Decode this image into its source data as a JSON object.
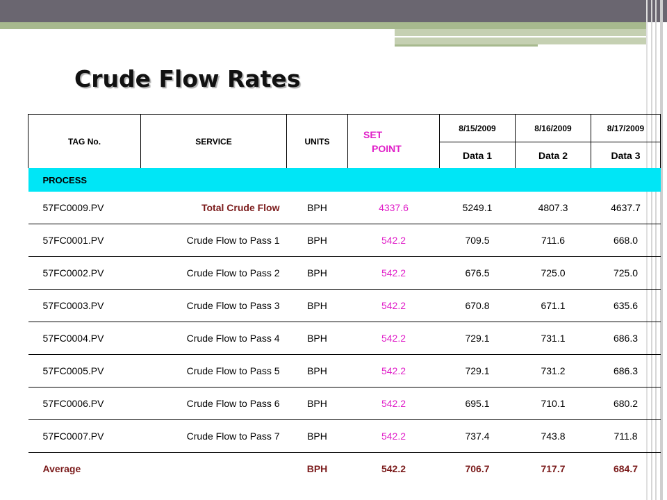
{
  "slide": {
    "title": "Crude Flow Rates"
  },
  "table": {
    "headers": {
      "tag": "TAG No.",
      "service": "SERVICE",
      "units": "UNITS",
      "set_point_line1": "SET",
      "set_point_line2": "POINT",
      "dates": [
        "8/15/2009",
        "8/16/2009",
        "8/17/2009"
      ],
      "data_labels": [
        "Data 1",
        "Data 2",
        "Data 3"
      ]
    },
    "section_label": "PROCESS",
    "rows": [
      {
        "tag": "57FC0009.PV",
        "service": "Total Crude Flow",
        "units": "BPH",
        "set_point": "4337.6",
        "d1": "5249.1",
        "d2": "4807.3",
        "d3": "4637.7"
      },
      {
        "tag": "57FC0001.PV",
        "service": "Crude Flow to Pass 1",
        "units": "BPH",
        "set_point": "542.2",
        "d1": "709.5",
        "d2": "711.6",
        "d3": "668.0"
      },
      {
        "tag": "57FC0002.PV",
        "service": "Crude Flow to Pass 2",
        "units": "BPH",
        "set_point": "542.2",
        "d1": "676.5",
        "d2": "725.0",
        "d3": "725.0"
      },
      {
        "tag": "57FC0003.PV",
        "service": "Crude Flow to Pass 3",
        "units": "BPH",
        "set_point": "542.2",
        "d1": "670.8",
        "d2": "671.1",
        "d3": "635.6"
      },
      {
        "tag": "57FC0004.PV",
        "service": "Crude Flow to Pass 4",
        "units": "BPH",
        "set_point": "542.2",
        "d1": "729.1",
        "d2": "731.1",
        "d3": "686.3"
      },
      {
        "tag": "57FC0005.PV",
        "service": "Crude Flow to Pass 5",
        "units": "BPH",
        "set_point": "542.2",
        "d1": "729.1",
        "d2": "731.2",
        "d3": "686.3"
      },
      {
        "tag": "57FC0006.PV",
        "service": "Crude Flow to Pass 6",
        "units": "BPH",
        "set_point": "542.2",
        "d1": "695.1",
        "d2": "710.1",
        "d3": "680.2"
      },
      {
        "tag": "57FC0007.PV",
        "service": "Crude Flow to Pass 7",
        "units": "BPH",
        "set_point": "542.2",
        "d1": "737.4",
        "d2": "743.8",
        "d3": "711.8"
      }
    ],
    "average": {
      "label": "Average",
      "units": "BPH",
      "set_point": "542.2",
      "d1": "706.7",
      "d2": "717.7",
      "d3": "684.7"
    }
  },
  "colors": {
    "process_band": "#00e6f6",
    "set_point_text": "#e01ec8",
    "emphasis_text": "#7a1a1a",
    "header_bar": "#6a6670",
    "accent_green": "#a7b98e"
  }
}
